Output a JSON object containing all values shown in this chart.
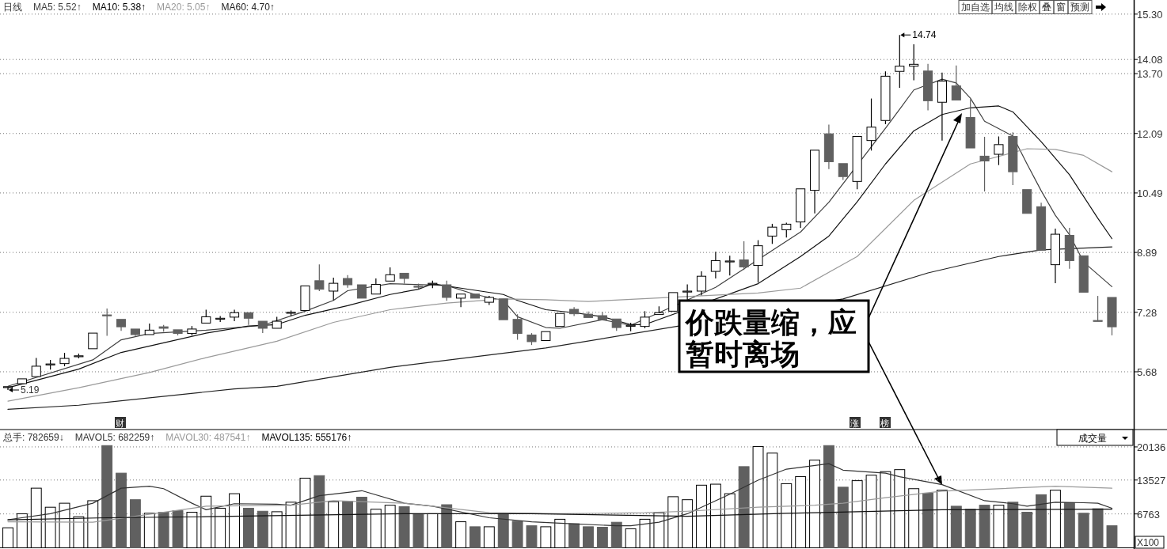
{
  "chart_data": [
    {
      "type": "candlestick",
      "legend": "top left",
      "grid": "y",
      "categories": [
        null,
        null,
        null,
        null,
        null,
        null,
        null,
        null,
        null,
        null,
        null,
        null,
        null,
        null,
        null,
        null,
        null,
        null,
        null,
        null,
        null,
        null,
        null,
        null,
        null,
        null,
        null,
        null,
        null,
        null,
        null,
        null,
        null,
        null,
        null,
        null,
        null,
        null,
        null,
        null,
        null,
        null,
        null,
        null,
        null,
        null,
        null,
        null,
        null,
        null,
        null,
        null,
        null,
        null,
        null,
        null,
        null,
        null,
        null,
        null,
        null,
        null,
        null,
        null,
        null,
        null,
        null,
        null,
        null,
        null,
        null,
        null,
        null,
        null,
        null,
        null,
        null,
        null,
        null
      ],
      "ohlc": [
        [
          5.27,
          5.3,
          5.19,
          5.28
        ],
        [
          5.36,
          5.52,
          5.36,
          5.49
        ],
        [
          5.55,
          6.05,
          5.52,
          5.83
        ],
        [
          5.87,
          6.0,
          5.74,
          5.89
        ],
        [
          5.9,
          6.19,
          5.83,
          6.04
        ],
        [
          6.09,
          6.17,
          6.04,
          6.11
        ],
        [
          6.3,
          6.72,
          6.3,
          6.72
        ],
        [
          7.21,
          7.38,
          6.65,
          7.19
        ],
        [
          7.09,
          7.09,
          6.78,
          6.89
        ],
        [
          6.83,
          6.83,
          6.64,
          6.68
        ],
        [
          6.68,
          6.98,
          6.68,
          6.8
        ],
        [
          6.89,
          6.94,
          6.76,
          6.85
        ],
        [
          6.81,
          6.81,
          6.66,
          6.71
        ],
        [
          6.71,
          6.91,
          6.66,
          6.83
        ],
        [
          6.99,
          7.35,
          6.99,
          7.16
        ],
        [
          7.1,
          7.18,
          7.02,
          7.12
        ],
        [
          7.15,
          7.35,
          7.04,
          7.27
        ],
        [
          7.27,
          7.27,
          6.94,
          7.12
        ],
        [
          7.04,
          7.04,
          6.72,
          6.85
        ],
        [
          6.85,
          7.16,
          6.85,
          7.04
        ],
        [
          7.26,
          7.33,
          7.18,
          7.28
        ],
        [
          7.33,
          7.99,
          7.33,
          7.99
        ],
        [
          8.13,
          8.57,
          7.85,
          7.9
        ],
        [
          7.85,
          8.21,
          7.6,
          8.06
        ],
        [
          8.19,
          8.28,
          7.94,
          8.02
        ],
        [
          8.02,
          8.02,
          7.64,
          7.66
        ],
        [
          7.77,
          8.19,
          7.77,
          8.03
        ],
        [
          8.12,
          8.49,
          8.12,
          8.29
        ],
        [
          8.33,
          8.33,
          8.05,
          8.19
        ],
        [
          7.98,
          8.05,
          7.91,
          7.96
        ],
        [
          8.04,
          8.13,
          7.93,
          8.06
        ],
        [
          8.02,
          8.13,
          7.59,
          7.68
        ],
        [
          7.66,
          7.77,
          7.42,
          7.77
        ],
        [
          7.77,
          7.77,
          7.64,
          7.66
        ],
        [
          7.55,
          7.72,
          7.48,
          7.68
        ],
        [
          7.64,
          7.64,
          7.06,
          7.08
        ],
        [
          7.09,
          7.23,
          6.54,
          6.71
        ],
        [
          6.67,
          6.72,
          6.4,
          6.49
        ],
        [
          6.52,
          6.76,
          6.52,
          6.76
        ],
        [
          6.9,
          7.25,
          6.9,
          7.25
        ],
        [
          7.36,
          7.42,
          7.18,
          7.24
        ],
        [
          7.23,
          7.3,
          7.12,
          7.14
        ],
        [
          7.19,
          7.29,
          7.08,
          7.08
        ],
        [
          7.1,
          7.1,
          6.78,
          6.87
        ],
        [
          6.92,
          7.0,
          6.77,
          6.93
        ],
        [
          6.9,
          7.31,
          6.85,
          7.15
        ],
        [
          7.22,
          7.44,
          7.22,
          7.27
        ],
        [
          7.31,
          7.81,
          7.31,
          7.81
        ],
        [
          7.83,
          8.03,
          7.62,
          7.85
        ],
        [
          7.85,
          8.38,
          7.74,
          8.25
        ],
        [
          8.38,
          8.91,
          8.19,
          8.67
        ],
        [
          8.64,
          8.8,
          8.27,
          8.66
        ],
        [
          8.69,
          9.19,
          8.42,
          8.5
        ],
        [
          8.54,
          9.22,
          8.08,
          9.07
        ],
        [
          9.33,
          9.66,
          9.12,
          9.57
        ],
        [
          9.5,
          9.69,
          9.29,
          9.65
        ],
        [
          9.71,
          10.6,
          9.55,
          10.6
        ],
        [
          10.56,
          11.64,
          9.94,
          11.64
        ],
        [
          12.08,
          12.33,
          11.13,
          11.33
        ],
        [
          11.28,
          11.28,
          10.84,
          10.93
        ],
        [
          10.8,
          12.01,
          10.59,
          12.01
        ],
        [
          11.9,
          13.03,
          11.63,
          12.26
        ],
        [
          12.44,
          13.76,
          12.34,
          13.63
        ],
        [
          13.76,
          14.74,
          13.32,
          13.9
        ],
        [
          13.9,
          14.49,
          13.52,
          13.95
        ],
        [
          13.77,
          13.96,
          12.71,
          12.97
        ],
        [
          12.93,
          13.73,
          11.9,
          13.5
        ],
        [
          13.37,
          13.92,
          12.99,
          12.99
        ],
        [
          12.52,
          13.01,
          11.7,
          11.7
        ],
        [
          11.48,
          12.0,
          10.53,
          11.35
        ],
        [
          11.53,
          12.01,
          11.24,
          11.79
        ],
        [
          12.01,
          12.12,
          10.7,
          11.06
        ],
        [
          10.58,
          10.58,
          9.94,
          9.94
        ],
        [
          10.12,
          10.23,
          8.95,
          8.95
        ],
        [
          8.56,
          9.53,
          8.06,
          9.38
        ],
        [
          9.35,
          9.55,
          8.45,
          8.67
        ],
        [
          8.8,
          8.8,
          7.82,
          7.82
        ],
        [
          7.06,
          7.72,
          7.04,
          7.05
        ],
        [
          7.68,
          7.68,
          6.66,
          6.89
        ]
      ],
      "colors": [
        "#ffffff",
        "#ffffff",
        "#ffffff",
        "#ffffff",
        "#ffffff",
        "#ffffff",
        "#ffffff",
        "#606060",
        "#606060",
        "#606060",
        "#ffffff",
        "#606060",
        "#606060",
        "#ffffff",
        "#ffffff",
        "#ffffff",
        "#ffffff",
        "#606060",
        "#606060",
        "#ffffff",
        "#ffffff",
        "#ffffff",
        "#606060",
        "#ffffff",
        "#606060",
        "#606060",
        "#ffffff",
        "#ffffff",
        "#606060",
        "#606060",
        "#ffffff",
        "#606060",
        "#ffffff",
        "#606060",
        "#ffffff",
        "#606060",
        "#606060",
        "#606060",
        "#ffffff",
        "#ffffff",
        "#606060",
        "#606060",
        "#606060",
        "#606060",
        "#ffffff",
        "#ffffff",
        "#ffffff",
        "#ffffff",
        "#ffffff",
        "#ffffff",
        "#ffffff",
        "#ffffff",
        "#606060",
        "#ffffff",
        "#ffffff",
        "#ffffff",
        "#ffffff",
        "#ffffff",
        "#606060",
        "#606060",
        "#ffffff",
        "#ffffff",
        "#ffffff",
        "#ffffff",
        "#ffffff",
        "#606060",
        "#ffffff",
        "#606060",
        "#606060",
        "#606060",
        "#ffffff",
        "#606060",
        "#606060",
        "#606060",
        "#ffffff",
        "#606060",
        "#606060",
        "#606060",
        "#606060"
      ],
      "series": [
        {
          "type": "line",
          "name": "MA5: 5.52↑",
          "color": "#404040",
          "values": [
            5.29,
            null,
            null,
            null,
            null,
            null,
            6.0,
            null,
            6.54,
            null,
            6.71,
            null,
            null,
            null,
            6.8,
            null,
            null,
            null,
            6.93,
            null,
            null,
            7.31,
            null,
            7.6,
            7.86,
            null,
            null,
            8.05,
            null,
            null,
            null,
            8.0,
            null,
            7.76,
            null,
            7.6,
            7.16,
            null,
            6.87,
            6.85,
            null,
            null,
            7.08,
            null,
            6.93,
            null,
            null,
            null,
            null,
            null,
            7.95,
            null,
            null,
            null,
            null,
            null,
            9.44,
            null,
            10.24,
            null,
            null,
            null,
            12.23,
            12.74,
            13.26,
            null,
            13.55,
            13.45,
            13.04,
            12.42,
            null,
            12.02,
            11.27,
            10.55,
            9.89,
            9.37,
            8.63,
            null,
            7.97
          ]
        },
        {
          "type": "line",
          "name": "MA10: 5.38↑",
          "color": "#111111",
          "values": [
            5.25,
            null,
            null,
            null,
            null,
            5.75,
            null,
            null,
            6.2,
            null,
            null,
            6.46,
            null,
            null,
            6.72,
            null,
            null,
            6.91,
            null,
            6.95,
            null,
            7.2,
            null,
            null,
            7.46,
            null,
            null,
            7.76,
            null,
            7.9,
            8.05,
            null,
            7.93,
            null,
            null,
            7.76,
            7.6,
            null,
            7.35,
            null,
            7.27,
            null,
            7.16,
            null,
            6.95,
            6.95,
            null,
            null,
            null,
            null,
            null,
            null,
            null,
            8.05,
            null,
            null,
            8.78,
            null,
            9.33,
            null,
            10.25,
            null,
            11.27,
            null,
            12.16,
            null,
            12.6,
            null,
            12.78,
            null,
            12.83,
            12.67,
            null,
            11.87,
            null,
            10.98,
            null,
            9.81,
            9.26
          ]
        },
        {
          "type": "line",
          "name": "MA20: 5.05↑",
          "color": "#9a9a9a",
          "values": [
            4.89,
            null,
            null,
            null,
            null,
            5.25,
            null,
            null,
            null,
            null,
            5.66,
            null,
            null,
            null,
            6.06,
            null,
            null,
            null,
            null,
            6.5,
            null,
            null,
            null,
            7.01,
            null,
            null,
            null,
            7.35,
            null,
            null,
            null,
            7.53,
            null,
            null,
            null,
            7.64,
            null,
            null,
            7.62,
            null,
            null,
            7.57,
            null,
            null,
            null,
            null,
            null,
            null,
            null,
            null,
            null,
            null,
            null,
            7.8,
            null,
            null,
            7.93,
            null,
            null,
            null,
            8.78,
            null,
            null,
            null,
            10.29,
            null,
            null,
            null,
            11.27,
            null,
            null,
            null,
            11.68,
            null,
            11.66,
            null,
            11.5,
            null,
            11.06
          ]
        },
        {
          "type": "line",
          "name": "MA60: 4.70↑",
          "color": "#222222",
          "values": [
            4.67,
            null,
            null,
            null,
            null,
            4.78,
            null,
            null,
            null,
            null,
            null,
            null,
            null,
            null,
            null,
            null,
            5.22,
            null,
            null,
            5.29,
            null,
            null,
            null,
            null,
            null,
            null,
            null,
            5.8,
            null,
            null,
            null,
            null,
            null,
            null,
            null,
            null,
            null,
            null,
            6.32,
            null,
            null,
            null,
            null,
            null,
            null,
            null,
            null,
            null,
            null,
            null,
            null,
            null,
            null,
            null,
            null,
            null,
            null,
            null,
            null,
            7.64,
            null,
            null,
            null,
            null,
            null,
            8.34,
            null,
            null,
            null,
            null,
            8.78,
            null,
            null,
            8.96,
            null,
            null,
            null,
            null,
            9.04
          ]
        }
      ],
      "ylim": [
        4.19,
        15.68
      ],
      "yticks": [
        5.68,
        7.28,
        8.89,
        10.49,
        12.09,
        {
          "value": 13.7,
          "label": "13.70"
        },
        14.08,
        {
          "value": 15.3,
          "label": "15.30"
        }
      ],
      "annotations": [
        "日线",
        "加自选",
        "均线",
        "除权",
        "叠",
        "窗",
        "预测",
        "价跌量缩，应暂时离场",
        "财",
        "涨",
        "榜",
        "14.74",
        "5.19"
      ]
    },
    {
      "type": "bar",
      "legend": "top left",
      "grid": "y",
      "categories": [
        null,
        null,
        null,
        null,
        null,
        null,
        null,
        null,
        null,
        null,
        null,
        null,
        null,
        null,
        null,
        null,
        null,
        null,
        null,
        null,
        null,
        null,
        null,
        null,
        null,
        null,
        null,
        null,
        null,
        null,
        null,
        null,
        null,
        null,
        null,
        null,
        null,
        null,
        null,
        null,
        null,
        null,
        null,
        null,
        null,
        null,
        null,
        null,
        null,
        null,
        null,
        null,
        null,
        null,
        null,
        null,
        null,
        null,
        null,
        null,
        null,
        null,
        null,
        null,
        null,
        null,
        null,
        null,
        null,
        null,
        null,
        null,
        null,
        null,
        null,
        null,
        null,
        null,
        null
      ],
      "series": [
        {
          "type": "bar",
          "values": [
            4000,
            6800,
            11900,
            8100,
            8900,
            6200,
            9400,
            20400,
            14900,
            9600,
            6900,
            7100,
            7400,
            7100,
            10300,
            7900,
            10800,
            7900,
            7300,
            7200,
            9100,
            13900,
            14400,
            9200,
            9300,
            10100,
            7700,
            8500,
            8200,
            6800,
            6800,
            8600,
            5200,
            4200,
            4200,
            6900,
            5300,
            4400,
            4200,
            5700,
            4800,
            4200,
            4100,
            5100,
            3800,
            5700,
            7000,
            10200,
            9600,
            12500,
            12700,
            10800,
            16200,
            20200,
            18900,
            12800,
            14200,
            17500,
            20400,
            12100,
            13400,
            14500,
            15200,
            15600,
            11800,
            10900,
            11500,
            8300,
            7700,
            8500,
            8500,
            9100,
            7100,
            10600,
            11500,
            9000,
            6900,
            7800,
            4400
          ],
          "colors": [
            "#ffffff",
            "#ffffff",
            "#ffffff",
            "#ffffff",
            "#ffffff",
            "#ffffff",
            "#ffffff",
            "#606060",
            "#606060",
            "#606060",
            "#ffffff",
            "#606060",
            "#606060",
            "#ffffff",
            "#ffffff",
            "#ffffff",
            "#ffffff",
            "#606060",
            "#606060",
            "#ffffff",
            "#ffffff",
            "#ffffff",
            "#606060",
            "#ffffff",
            "#606060",
            "#606060",
            "#ffffff",
            "#ffffff",
            "#606060",
            "#606060",
            "#ffffff",
            "#606060",
            "#ffffff",
            "#606060",
            "#ffffff",
            "#606060",
            "#606060",
            "#606060",
            "#ffffff",
            "#ffffff",
            "#606060",
            "#606060",
            "#606060",
            "#606060",
            "#ffffff",
            "#ffffff",
            "#ffffff",
            "#ffffff",
            "#ffffff",
            "#ffffff",
            "#ffffff",
            "#ffffff",
            "#606060",
            "#ffffff",
            "#ffffff",
            "#ffffff",
            "#ffffff",
            "#ffffff",
            "#606060",
            "#606060",
            "#ffffff",
            "#ffffff",
            "#ffffff",
            "#ffffff",
            "#ffffff",
            "#606060",
            "#ffffff",
            "#606060",
            "#606060",
            "#606060",
            "#ffffff",
            "#606060",
            "#606060",
            "#606060",
            "#ffffff",
            "#606060",
            "#606060",
            "#606060",
            "#606060"
          ]
        },
        {
          "type": "line",
          "name": "MAVOL5: 682259↑",
          "color": "#333333",
          "values": [
            5600,
            null,
            null,
            6800,
            null,
            null,
            8900,
            null,
            11900,
            null,
            12300,
            11800,
            null,
            8900,
            7600,
            null,
            8800,
            null,
            null,
            8700,
            8500,
            null,
            10400,
            null,
            null,
            11400,
            null,
            null,
            8900,
            null,
            8300,
            null,
            null,
            null,
            6000,
            null,
            null,
            5200,
            null,
            4900,
            null,
            null,
            null,
            4400,
            4400,
            null,
            5100,
            null,
            6800,
            null,
            null,
            10700,
            null,
            13500,
            null,
            15700,
            null,
            null,
            16800,
            15500,
            null,
            null,
            14900,
            14200,
            null,
            null,
            12600,
            null,
            null,
            9400,
            null,
            8800,
            8300,
            null,
            9100,
            null,
            9000,
            8900,
            7900
          ]
        },
        {
          "type": "line",
          "name": "MAVOL30: 487541↑",
          "color": "#9a9a9a",
          "values": [
            5200,
            null,
            null,
            null,
            null,
            null,
            5100,
            null,
            null,
            null,
            null,
            null,
            null,
            null,
            8300,
            null,
            null,
            null,
            null,
            null,
            8500,
            null,
            null,
            9400,
            null,
            null,
            null,
            null,
            8900,
            null,
            8300,
            null,
            null,
            null,
            7000,
            null,
            null,
            null,
            null,
            6800,
            null,
            null,
            null,
            null,
            null,
            7000,
            null,
            null,
            7300,
            null,
            null,
            null,
            null,
            8100,
            null,
            null,
            null,
            8500,
            null,
            8900,
            null,
            null,
            10000,
            null,
            null,
            null,
            11300,
            null,
            null,
            null,
            null,
            null,
            null,
            null,
            12300,
            null,
            12100,
            null,
            11900
          ]
        },
        {
          "type": "line",
          "name": "MAVOL135: 555176↑",
          "color": "#111111",
          "values": [
            5600,
            null,
            null,
            null,
            null,
            null,
            null,
            6000,
            null,
            null,
            null,
            null,
            null,
            null,
            6200,
            null,
            null,
            null,
            null,
            null,
            null,
            null,
            null,
            null,
            null,
            null,
            null,
            null,
            6800,
            null,
            null,
            null,
            null,
            null,
            null,
            null,
            null,
            6800,
            null,
            null,
            null,
            null,
            null,
            null,
            null,
            null,
            null,
            null,
            6300,
            null,
            null,
            null,
            null,
            null,
            null,
            6900,
            null,
            7000,
            null,
            null,
            null,
            null,
            null,
            null,
            null,
            null,
            7600,
            null,
            null,
            null,
            null,
            null,
            null,
            null,
            null,
            null,
            null,
            null,
            7700
          ]
        }
      ],
      "ylim": [
        0,
        23600
      ],
      "yticks": [
        6763,
        13527,
        20136
      ],
      "annotations": [
        "总手: 782659↓",
        "成交量",
        "X100"
      ]
    }
  ]
}
